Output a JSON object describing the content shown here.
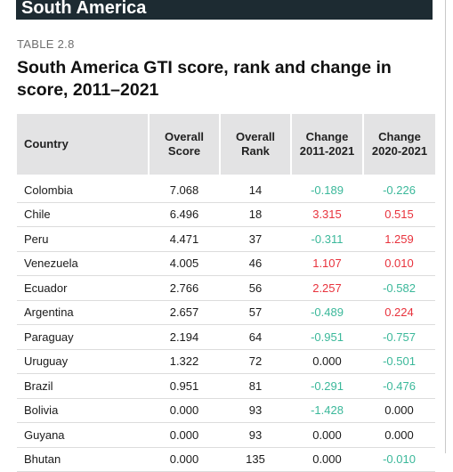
{
  "banner": {
    "title": "South America"
  },
  "table": {
    "label": "TABLE 2.8",
    "title": "South America GTI score, rank and change in score, 2011–2021",
    "headers": {
      "country": "Country",
      "overall_score": [
        "Overall",
        "Score"
      ],
      "overall_rank": [
        "Overall",
        "Rank"
      ],
      "change_2011_2021": [
        "Change",
        "2011-2021"
      ],
      "change_2020_2021": [
        "Change",
        "2020-2021"
      ]
    },
    "colors": {
      "negative": "#3bb89a",
      "positive": "#e8323c",
      "neutral": "#1a1a1a"
    },
    "rows": [
      {
        "country": "Colombia",
        "score": "7.068",
        "rank": "14",
        "c1": "-0.189",
        "c2": "-0.226"
      },
      {
        "country": "Chile",
        "score": "6.496",
        "rank": "18",
        "c1": "3.315",
        "c2": "0.515"
      },
      {
        "country": "Peru",
        "score": "4.471",
        "rank": "37",
        "c1": "-0.311",
        "c2": "1.259"
      },
      {
        "country": "Venezuela",
        "score": "4.005",
        "rank": "46",
        "c1": "1.107",
        "c2": "0.010"
      },
      {
        "country": "Ecuador",
        "score": "2.766",
        "rank": "56",
        "c1": "2.257",
        "c2": "-0.582"
      },
      {
        "country": "Argentina",
        "score": "2.657",
        "rank": "57",
        "c1": "-0.489",
        "c2": "0.224"
      },
      {
        "country": "Paraguay",
        "score": "2.194",
        "rank": "64",
        "c1": "-0.951",
        "c2": "-0.757"
      },
      {
        "country": "Uruguay",
        "score": "1.322",
        "rank": "72",
        "c1": "0.000",
        "c2": "-0.501"
      },
      {
        "country": "Brazil",
        "score": "0.951",
        "rank": "81",
        "c1": "-0.291",
        "c2": "-0.476"
      },
      {
        "country": "Bolivia",
        "score": "0.000",
        "rank": "93",
        "c1": "-1.428",
        "c2": "0.000"
      },
      {
        "country": "Guyana",
        "score": "0.000",
        "rank": "93",
        "c1": "0.000",
        "c2": "0.000"
      },
      {
        "country": "Bhutan",
        "score": "0.000",
        "rank": "135",
        "c1": "0.000",
        "c2": "-0.010"
      }
    ]
  }
}
